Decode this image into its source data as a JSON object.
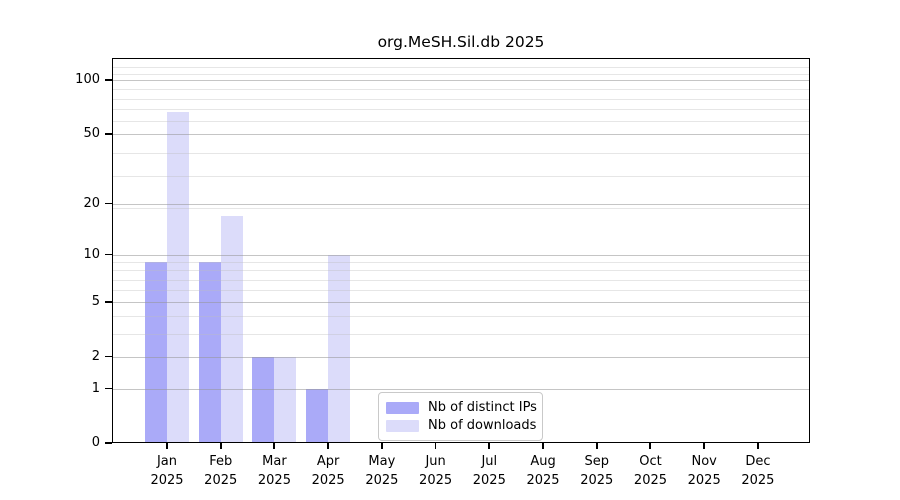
{
  "figure": {
    "title": "org.MeSH.Sil.db 2025",
    "background": "#ffffff"
  },
  "legend": {
    "items": [
      {
        "label": "Nb of distinct IPs",
        "color": "#aaaaf8"
      },
      {
        "label": "Nb of downloads",
        "color": "#dcdcfa"
      }
    ]
  },
  "axes": {
    "y_tick_labels": [
      "0",
      "1",
      "2",
      "5",
      "10",
      "20",
      "50",
      "100"
    ],
    "x_year_line": "2025"
  },
  "chart_data": {
    "type": "bar",
    "title": "org.MeSH.Sil.db 2025",
    "categories": [
      "Jan 2025",
      "Feb 2025",
      "Mar 2025",
      "Apr 2025",
      "May 2025",
      "Jun 2025",
      "Jul 2025",
      "Aug 2025",
      "Sep 2025",
      "Oct 2025",
      "Nov 2025",
      "Dec 2025"
    ],
    "series": [
      {
        "name": "Nb of distinct IPs",
        "color": "#aaaaf8",
        "values": [
          9,
          9,
          2,
          1,
          0,
          0,
          0,
          0,
          0,
          0,
          0,
          0
        ]
      },
      {
        "name": "Nb of downloads",
        "color": "#dcdcfa",
        "values": [
          66,
          17,
          2,
          10,
          0,
          0,
          0,
          0,
          0,
          0,
          0,
          0
        ]
      }
    ],
    "yticks": [
      0,
      1,
      2,
      5,
      10,
      20,
      50,
      100
    ],
    "yscale": "log10(1+x)",
    "ylim": [
      0,
      133
    ],
    "grid": true,
    "grid_colors": {
      "major": "#d0d0d0",
      "minor": "#ececec"
    },
    "legend_position": "lower center"
  }
}
